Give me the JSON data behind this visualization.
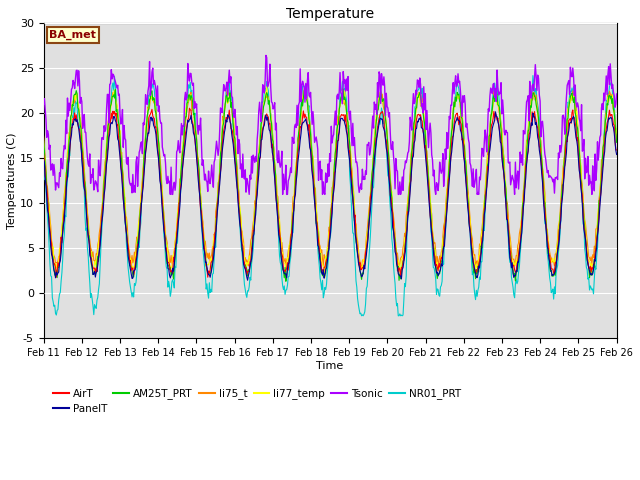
{
  "title": "Temperature",
  "xlabel": "Time",
  "ylabel": "Temperatures (C)",
  "ylim": [
    -5,
    30
  ],
  "yticks": [
    -5,
    0,
    5,
    10,
    15,
    20,
    25,
    30
  ],
  "xtick_labels": [
    "Feb 11",
    "Feb 12",
    "Feb 13",
    "Feb 14",
    "Feb 15",
    "Feb 16",
    "Feb 17",
    "Feb 18",
    "Feb 19",
    "Feb 20",
    "Feb 21",
    "Feb 22",
    "Feb 23",
    "Feb 24",
    "Feb 25",
    "Feb 26"
  ],
  "annotation_text": "BA_met",
  "bg_color": "#e0e0e0",
  "figsize": [
    6.4,
    4.8
  ],
  "dpi": 100,
  "series": {
    "AirT": {
      "color": "#ff0000",
      "lw": 0.8
    },
    "PanelT": {
      "color": "#000099",
      "lw": 0.8
    },
    "AM25T_PRT": {
      "color": "#00cc00",
      "lw": 0.8
    },
    "li75_t": {
      "color": "#ff8800",
      "lw": 0.8
    },
    "li77_temp": {
      "color": "#ffff00",
      "lw": 0.8
    },
    "Tsonic": {
      "color": "#aa00ff",
      "lw": 1.0
    },
    "NR01_PRT": {
      "color": "#00cccc",
      "lw": 0.8
    }
  }
}
